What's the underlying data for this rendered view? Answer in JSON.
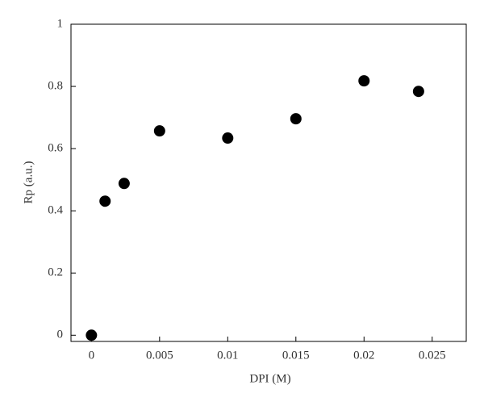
{
  "chart_data": {
    "type": "scatter",
    "x_label": "DPI (M)",
    "y_label": "Rp (a.u.)",
    "series": [
      {
        "name": "Rp",
        "color": "#000000",
        "x": [
          0,
          0.001,
          0.0024,
          0.005,
          0.01,
          0.015,
          0.02,
          0.024
        ],
        "values": [
          0,
          0.431,
          0.488,
          0.657,
          0.634,
          0.696,
          0.818,
          0.784
        ]
      }
    ],
    "xlim": [
      -0.0015,
      0.0275
    ],
    "ylim": [
      -0.02,
      1
    ],
    "xticks": [
      0,
      0.005,
      0.01,
      0.015,
      0.02,
      0.025
    ],
    "yticks": [
      0,
      0.2,
      0.4,
      0.6,
      0.8,
      1
    ],
    "grid": false
  }
}
